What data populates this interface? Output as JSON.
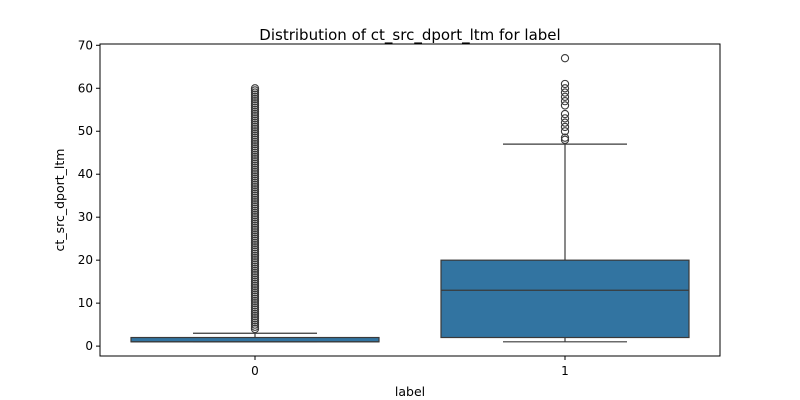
{
  "chart_data": {
    "type": "box",
    "title": "Distribution of ct_src_dport_ltm for label",
    "xlabel": "label",
    "ylabel": "ct_src_dport_ltm",
    "categories": [
      "0",
      "1"
    ],
    "ylim": [
      -2.3,
      70.3
    ],
    "yticks": [
      0,
      10,
      20,
      30,
      40,
      50,
      60,
      70
    ],
    "grid": false,
    "legend": "none",
    "box_color": "#3274a1",
    "line_color": "#3a3a3a",
    "boxes": [
      {
        "category": "0",
        "whisker_low": 1,
        "q1": 1,
        "median": 1,
        "q3": 2,
        "whisker_high": 3,
        "outliers_range": [
          4,
          60
        ]
      },
      {
        "category": "1",
        "whisker_low": 1,
        "q1": 2,
        "median": 13,
        "q3": 20,
        "whisker_high": 47,
        "outliers": [
          48,
          48.5,
          50,
          51,
          52,
          53,
          54,
          56,
          57,
          58,
          59,
          60,
          61,
          67
        ]
      }
    ]
  }
}
